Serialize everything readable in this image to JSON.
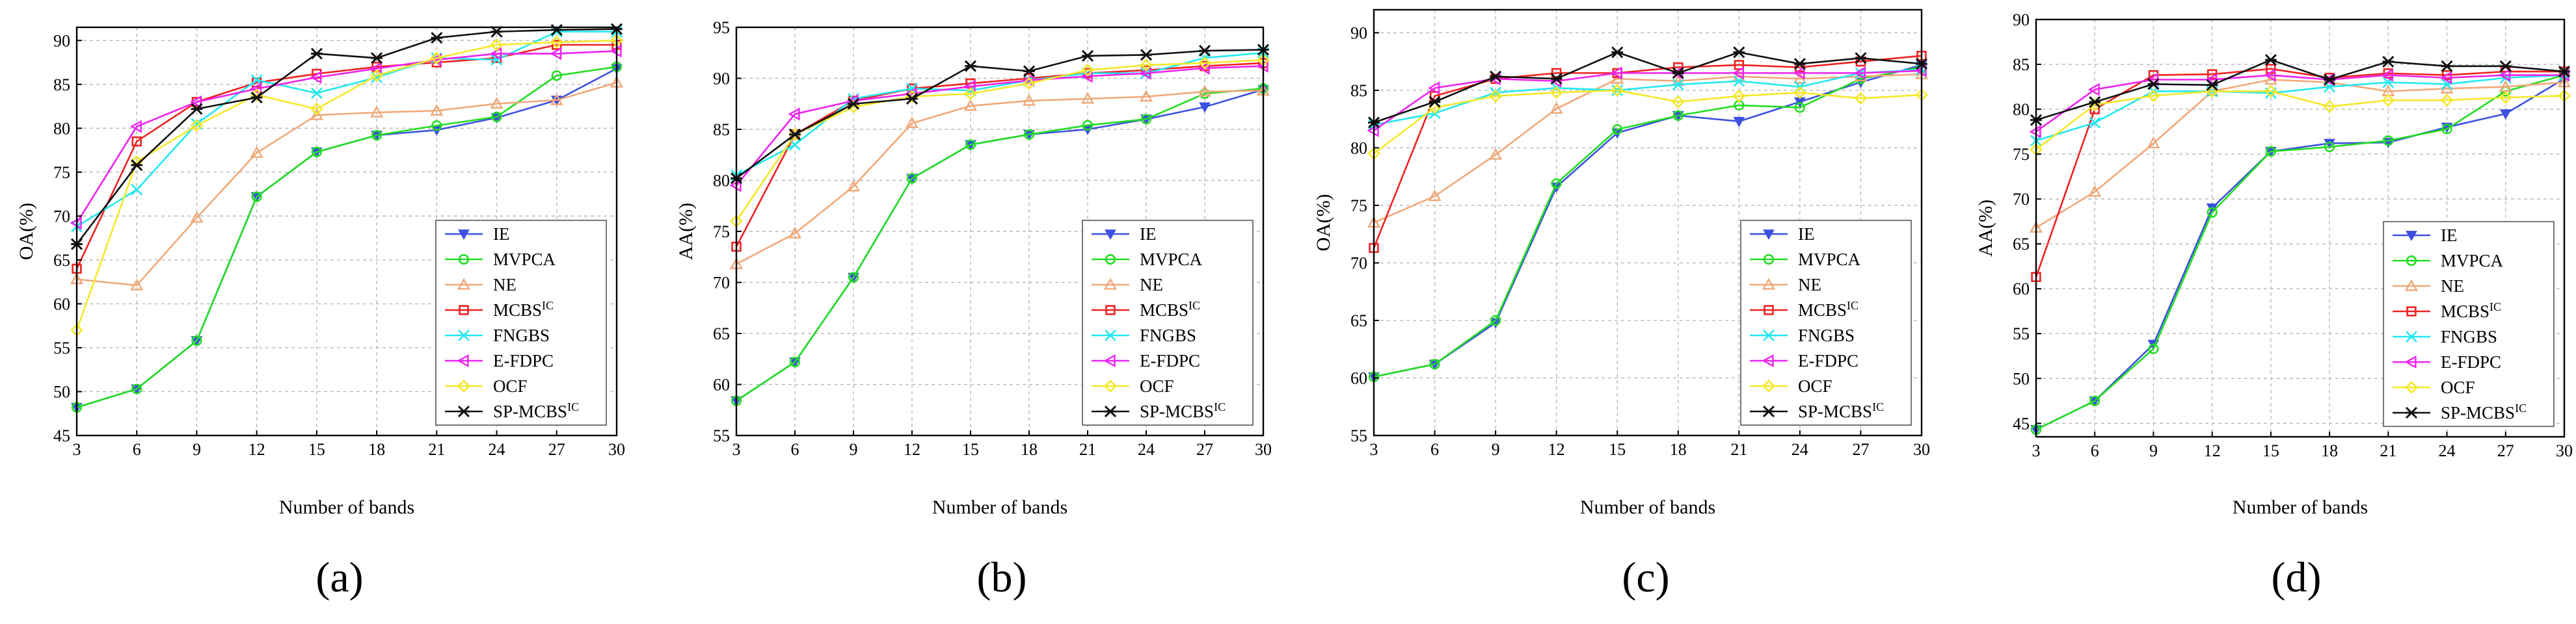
{
  "figure_labels": [
    "(a)",
    "(b)",
    "(c)",
    "(d)"
  ],
  "series_styles": [
    {
      "name": "IE",
      "sup": "",
      "color": "#3c50e0",
      "marker": "triangle-down"
    },
    {
      "name": "MVPCA",
      "sup": "",
      "color": "#22dd22",
      "marker": "circle"
    },
    {
      "name": "NE",
      "sup": "",
      "color": "#f0a878",
      "marker": "triangle-up"
    },
    {
      "name": "MCBS",
      "sup": "IC",
      "color": "#ee2222",
      "marker": "square"
    },
    {
      "name": "FNGBS",
      "sup": "",
      "color": "#22e8f0",
      "marker": "x"
    },
    {
      "name": "E-FDPC",
      "sup": "",
      "color": "#ee22ee",
      "marker": "triangle-left"
    },
    {
      "name": "OCF",
      "sup": "",
      "color": "#f5e828",
      "marker": "diamond"
    },
    {
      "name": "SP-MCBS",
      "sup": "IC",
      "color": "#111111",
      "marker": "asterisk"
    }
  ],
  "chart_data": [
    {
      "type": "line",
      "title": "",
      "xlabel": "Number of bands",
      "ylabel": "OA(%)",
      "x": [
        3,
        6,
        9,
        12,
        15,
        18,
        21,
        24,
        27,
        30
      ],
      "xlim": [
        3,
        30
      ],
      "ylim": [
        45,
        91.5
      ],
      "yticks": [
        45,
        50,
        55,
        60,
        65,
        70,
        75,
        80,
        85,
        90
      ],
      "legend": "bottom-right",
      "series": [
        {
          "name": "IE",
          "values": [
            48.2,
            50.3,
            55.8,
            72.2,
            77.3,
            79.2,
            79.8,
            81.2,
            83.2,
            86.8
          ]
        },
        {
          "name": "MVPCA",
          "values": [
            48.2,
            50.3,
            55.8,
            72.2,
            77.3,
            79.2,
            80.3,
            81.3,
            86.0,
            87.0
          ]
        },
        {
          "name": "NE",
          "values": [
            62.8,
            62.1,
            69.8,
            77.2,
            81.5,
            81.8,
            82.0,
            82.8,
            83.2,
            85.2
          ]
        },
        {
          "name": "MCBSIC",
          "values": [
            64.0,
            78.5,
            83.0,
            85.2,
            86.2,
            87.0,
            87.5,
            88.0,
            89.5,
            89.5
          ]
        },
        {
          "name": "FNGBS",
          "values": [
            68.8,
            73.0,
            80.5,
            85.5,
            84.0,
            85.8,
            88.0,
            87.8,
            91.0,
            91.0
          ]
        },
        {
          "name": "E-FDPC",
          "values": [
            69.2,
            80.2,
            83.0,
            84.5,
            85.8,
            86.8,
            87.8,
            88.5,
            88.5,
            88.8
          ]
        },
        {
          "name": "OCF",
          "values": [
            57.0,
            76.2,
            80.3,
            83.8,
            82.2,
            86.0,
            88.0,
            89.5,
            89.8,
            90.0
          ]
        },
        {
          "name": "SP-MCBSIC",
          "values": [
            66.8,
            75.8,
            82.2,
            83.5,
            88.5,
            88.0,
            90.3,
            91.0,
            91.2,
            91.3
          ]
        }
      ]
    },
    {
      "type": "line",
      "title": "",
      "xlabel": "Number of bands",
      "ylabel": "AA(%)",
      "x": [
        3,
        6,
        9,
        12,
        15,
        18,
        21,
        24,
        27,
        30
      ],
      "xlim": [
        3,
        30
      ],
      "ylim": [
        55,
        95
      ],
      "yticks": [
        55,
        60,
        65,
        70,
        75,
        80,
        85,
        90,
        95
      ],
      "legend": "bottom-right",
      "series": [
        {
          "name": "IE",
          "values": [
            58.4,
            62.2,
            70.5,
            80.2,
            83.5,
            84.5,
            85.0,
            86.0,
            87.2,
            88.9
          ]
        },
        {
          "name": "MVPCA",
          "values": [
            58.4,
            62.2,
            70.5,
            80.2,
            83.5,
            84.5,
            85.4,
            86.0,
            88.5,
            89.0
          ]
        },
        {
          "name": "NE",
          "values": [
            71.8,
            74.8,
            79.4,
            85.6,
            87.3,
            87.8,
            88.0,
            88.2,
            88.7,
            88.8
          ]
        },
        {
          "name": "MCBSIC",
          "values": [
            73.5,
            84.5,
            87.8,
            89.0,
            89.5,
            90.0,
            90.5,
            90.8,
            91.2,
            91.5
          ]
        },
        {
          "name": "FNGBS",
          "values": [
            80.5,
            83.5,
            88.0,
            89.0,
            88.8,
            89.8,
            90.5,
            90.5,
            92.0,
            92.5
          ]
        },
        {
          "name": "E-FDPC",
          "values": [
            79.5,
            86.5,
            87.8,
            88.5,
            89.2,
            89.8,
            90.2,
            90.5,
            91.0,
            91.2
          ]
        },
        {
          "name": "OCF",
          "values": [
            76.0,
            84.5,
            87.2,
            88.2,
            88.5,
            89.5,
            90.8,
            91.3,
            91.5,
            91.8
          ]
        },
        {
          "name": "SP-MCBSIC",
          "values": [
            80.2,
            84.5,
            87.5,
            88.0,
            91.2,
            90.7,
            92.2,
            92.3,
            92.7,
            92.8
          ]
        }
      ]
    },
    {
      "type": "line",
      "title": "",
      "xlabel": "Number of bands",
      "ylabel": "OA(%)",
      "x": [
        3,
        6,
        9,
        12,
        15,
        18,
        21,
        24,
        27,
        30
      ],
      "xlim": [
        3,
        30
      ],
      "ylim": [
        55,
        92
      ],
      "yticks": [
        55,
        60,
        65,
        70,
        75,
        80,
        85,
        90
      ],
      "legend": "bottom-right",
      "series": [
        {
          "name": "IE",
          "values": [
            60.1,
            61.2,
            64.8,
            76.6,
            81.3,
            82.8,
            82.3,
            84.0,
            85.7,
            87.2
          ]
        },
        {
          "name": "MVPCA",
          "values": [
            60.1,
            61.2,
            65.0,
            76.9,
            81.6,
            82.8,
            83.7,
            83.5,
            86.0,
            87.0
          ]
        },
        {
          "name": "NE",
          "values": [
            73.5,
            75.8,
            79.4,
            83.4,
            86.0,
            85.8,
            86.2,
            86.0,
            86.2,
            86.4
          ]
        },
        {
          "name": "MCBSIC",
          "values": [
            71.3,
            84.5,
            86.0,
            86.5,
            86.5,
            87.0,
            87.2,
            87.0,
            87.5,
            88.0
          ]
        },
        {
          "name": "FNGBS",
          "values": [
            82.0,
            83.0,
            84.8,
            85.2,
            85.0,
            85.5,
            85.8,
            85.3,
            86.5,
            86.8
          ]
        },
        {
          "name": "E-FDPC",
          "values": [
            81.5,
            85.2,
            86.0,
            85.8,
            86.5,
            86.5,
            86.5,
            86.5,
            86.5,
            86.7
          ]
        },
        {
          "name": "OCF",
          "values": [
            79.5,
            83.5,
            84.5,
            84.8,
            85.0,
            84.0,
            84.5,
            84.8,
            84.3,
            84.6
          ]
        },
        {
          "name": "SP-MCBSIC",
          "values": [
            82.2,
            84.0,
            86.2,
            86.0,
            88.3,
            86.5,
            88.3,
            87.3,
            87.8,
            87.3
          ]
        }
      ]
    },
    {
      "type": "line",
      "title": "",
      "xlabel": "Number of bands",
      "ylabel": "AA(%)",
      "x": [
        3,
        6,
        9,
        12,
        15,
        18,
        21,
        24,
        27,
        30
      ],
      "xlim": [
        3,
        30
      ],
      "ylim": [
        43.5,
        90
      ],
      "yticks": [
        45,
        50,
        55,
        60,
        65,
        70,
        75,
        80,
        85,
        90
      ],
      "legend": "bottom-right",
      "series": [
        {
          "name": "IE",
          "values": [
            44.3,
            47.5,
            53.8,
            69.0,
            75.3,
            76.2,
            76.3,
            78.0,
            79.5,
            83.4
          ]
        },
        {
          "name": "MVPCA",
          "values": [
            44.3,
            47.5,
            53.3,
            68.5,
            75.3,
            75.8,
            76.5,
            77.8,
            82.0,
            83.8
          ]
        },
        {
          "name": "NE",
          "values": [
            66.8,
            70.8,
            76.2,
            82.0,
            83.3,
            83.0,
            82.0,
            82.3,
            82.5,
            83.0
          ]
        },
        {
          "name": "MCBSIC",
          "values": [
            61.3,
            80.0,
            83.8,
            83.9,
            84.5,
            83.5,
            84.0,
            83.8,
            84.2,
            84.2
          ]
        },
        {
          "name": "FNGBS",
          "values": [
            76.5,
            78.5,
            82.0,
            82.0,
            81.8,
            82.5,
            83.0,
            82.8,
            83.5,
            83.8
          ]
        },
        {
          "name": "E-FDPC",
          "values": [
            77.5,
            82.2,
            83.3,
            83.3,
            83.8,
            83.3,
            83.8,
            83.5,
            83.8,
            83.8
          ]
        },
        {
          "name": "OCF",
          "values": [
            75.5,
            80.5,
            81.5,
            82.0,
            82.0,
            80.3,
            81.0,
            81.0,
            81.3,
            81.5
          ]
        },
        {
          "name": "SP-MCBSIC",
          "values": [
            78.8,
            80.8,
            82.8,
            82.7,
            85.5,
            83.3,
            85.3,
            84.8,
            84.8,
            84.2
          ]
        }
      ]
    }
  ]
}
